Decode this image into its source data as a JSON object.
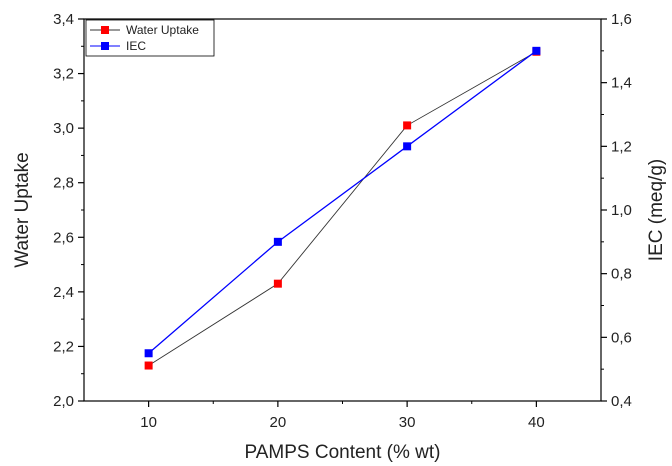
{
  "chart_data": {
    "type": "line",
    "xlabel": "PAMPS Content (% wt)",
    "x_ticks": [
      10,
      20,
      30,
      40
    ],
    "y_left": {
      "label": "Water Uptake",
      "lim": [
        2.0,
        3.4
      ],
      "ticks": [
        "2,0",
        "2,2",
        "2,4",
        "2,6",
        "2,8",
        "3,0",
        "3,2",
        "3,4"
      ]
    },
    "y_right": {
      "label": "IEC (meq/g)",
      "lim": [
        0.4,
        1.6
      ],
      "ticks": [
        "0,4",
        "0,6",
        "0,8",
        "1,0",
        "1,2",
        "1,4",
        "1,6"
      ]
    },
    "legend_position": "top-left",
    "series": [
      {
        "name": "Water Uptake",
        "axis": "left",
        "line_color": "#333333",
        "marker_color": "#ff0000",
        "x": [
          10,
          20,
          30,
          40
        ],
        "values": [
          2.13,
          2.43,
          3.01,
          3.28
        ]
      },
      {
        "name": "IEC",
        "axis": "right",
        "line_color": "#0000ff",
        "marker_color": "#0000ff",
        "x": [
          10,
          20,
          30,
          40
        ],
        "values": [
          0.55,
          0.9,
          1.2,
          1.5
        ]
      }
    ]
  }
}
